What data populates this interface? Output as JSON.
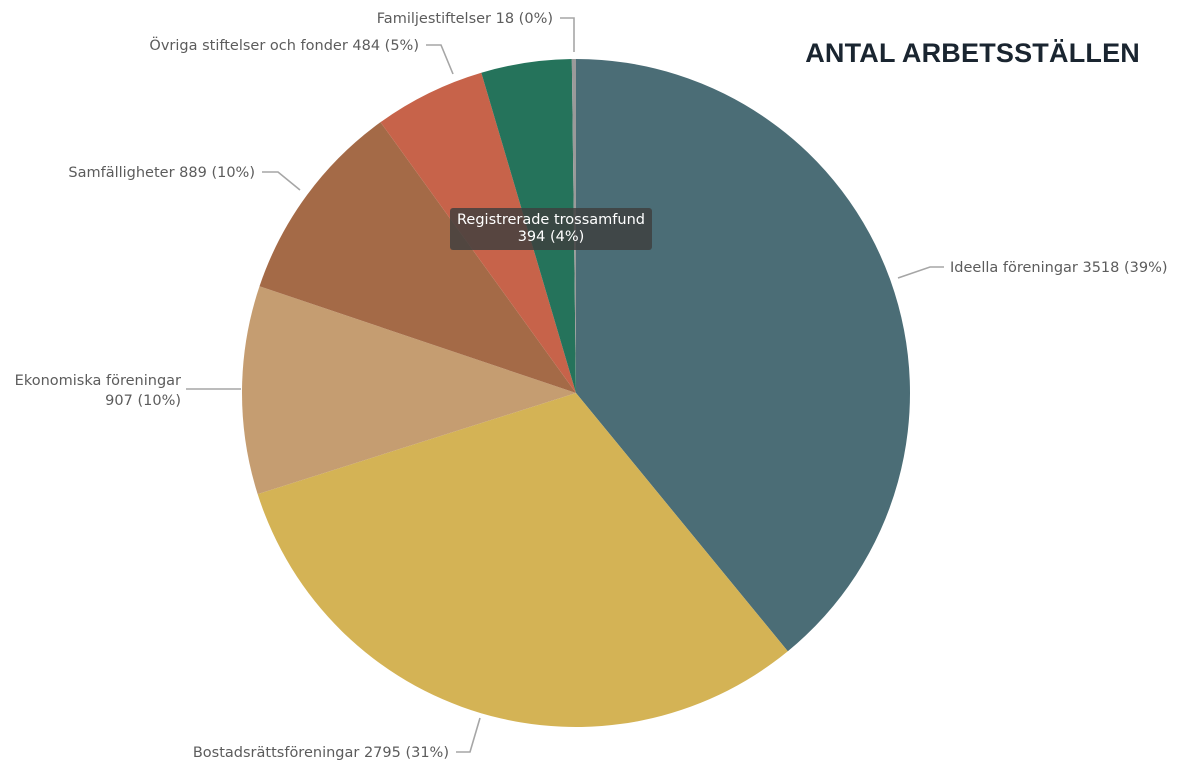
{
  "chart_data": {
    "type": "pie",
    "title": "ANTAL ARBETSSTÄLLEN",
    "slices": [
      {
        "name": "Ideella föreningar",
        "value": 3518,
        "percent": 39,
        "label": "Ideella föreningar 3518 (39%)",
        "color": "#4b6d76"
      },
      {
        "name": "Bostadsrättsföreningar",
        "value": 2795,
        "percent": 31,
        "label": "Bostadsrättsföreningar 2795 (31%)",
        "color": "#d4b355"
      },
      {
        "name": "Ekonomiska föreningar",
        "value": 907,
        "percent": 10,
        "label_lines": [
          "Ekonomiska föreningar",
          "907 (10%)"
        ],
        "color": "#c59d71"
      },
      {
        "name": "Samfälligheter",
        "value": 889,
        "percent": 10,
        "label": "Samfälligheter 889 (10%)",
        "color": "#a46a47"
      },
      {
        "name": "Övriga stiftelser och fonder",
        "value": 484,
        "percent": 5,
        "label": "Övriga stiftelser och fonder 484 (5%)",
        "color": "#c7634a"
      },
      {
        "name": "Registrerade trossamfund",
        "value": 394,
        "percent": 4,
        "label": "",
        "color": "#25735b"
      },
      {
        "name": "Familjestiftelser",
        "value": 18,
        "percent": 0,
        "label": "Familjestiftelser 18 (0%)",
        "color": "#9a9a9a"
      }
    ],
    "tooltip": {
      "line1": "Registrerade trossamfund",
      "line2": "394 (4%)"
    }
  }
}
